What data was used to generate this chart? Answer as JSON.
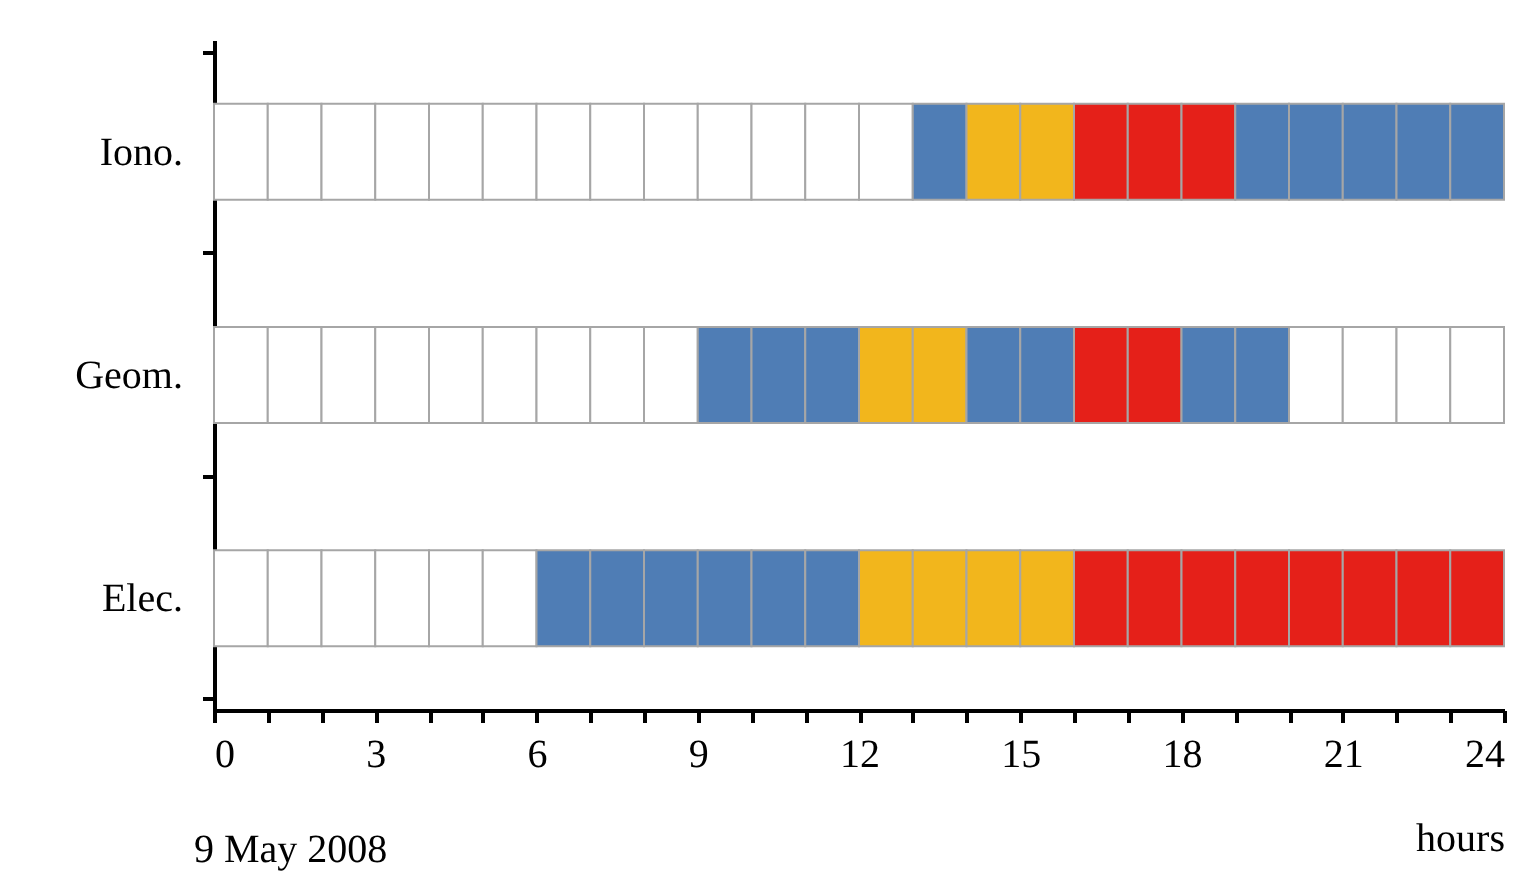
{
  "chart_data": {
    "type": "bar",
    "orientation": "horizontal",
    "stacked": true,
    "xlabel": "hours",
    "annotations": [
      "9 May 2008"
    ],
    "categories": [
      "Iono.",
      "Geom.",
      "Elec."
    ],
    "xlim": [
      0,
      24
    ],
    "xticks": [
      0,
      {
        "value": 1,
        "label": null
      },
      {
        "value": 2,
        "label": null
      },
      3,
      {
        "value": 4,
        "label": null
      },
      {
        "value": 5,
        "label": null
      },
      6,
      {
        "value": 7,
        "label": null
      },
      {
        "value": 8,
        "label": null
      },
      9,
      {
        "value": 10,
        "label": null
      },
      {
        "value": 11,
        "label": null
      },
      12,
      {
        "value": 13,
        "label": null
      },
      {
        "value": 14,
        "label": null
      },
      15,
      {
        "value": 16,
        "label": null
      },
      {
        "value": 17,
        "label": null
      },
      18,
      {
        "value": 19,
        "label": null
      },
      {
        "value": 20,
        "label": null
      },
      21,
      {
        "value": 22,
        "label": null
      },
      {
        "value": 23,
        "label": null
      },
      24
    ],
    "grid": false,
    "series": [
      {
        "values": [
          1,
          1,
          1
        ],
        "colors": [
          "#ffffff",
          "#ffffff",
          "#ffffff"
        ]
      },
      {
        "values": [
          1,
          1,
          1
        ],
        "colors": [
          "#ffffff",
          "#ffffff",
          "#ffffff"
        ]
      },
      {
        "values": [
          1,
          1,
          1
        ],
        "colors": [
          "#ffffff",
          "#ffffff",
          "#ffffff"
        ]
      },
      {
        "values": [
          1,
          1,
          1
        ],
        "colors": [
          "#ffffff",
          "#ffffff",
          "#ffffff"
        ]
      },
      {
        "values": [
          1,
          1,
          1
        ],
        "colors": [
          "#ffffff",
          "#ffffff",
          "#ffffff"
        ]
      },
      {
        "values": [
          1,
          1,
          1
        ],
        "colors": [
          "#ffffff",
          "#ffffff",
          "#ffffff"
        ]
      },
      {
        "values": [
          1,
          1,
          1
        ],
        "colors": [
          "#ffffff",
          "#ffffff",
          "#4f7db5"
        ]
      },
      {
        "values": [
          1,
          1,
          1
        ],
        "colors": [
          "#ffffff",
          "#ffffff",
          "#4f7db5"
        ]
      },
      {
        "values": [
          1,
          1,
          1
        ],
        "colors": [
          "#ffffff",
          "#ffffff",
          "#4f7db5"
        ]
      },
      {
        "values": [
          1,
          1,
          1
        ],
        "colors": [
          "#ffffff",
          "#4f7db5",
          "#4f7db5"
        ]
      },
      {
        "values": [
          1,
          1,
          1
        ],
        "colors": [
          "#ffffff",
          "#4f7db5",
          "#4f7db5"
        ]
      },
      {
        "values": [
          1,
          1,
          1
        ],
        "colors": [
          "#ffffff",
          "#4f7db5",
          "#4f7db5"
        ]
      },
      {
        "values": [
          1,
          1,
          1
        ],
        "colors": [
          "#ffffff",
          "#f2b61c",
          "#f2b61c"
        ]
      },
      {
        "values": [
          1,
          1,
          1
        ],
        "colors": [
          "#4f7db5",
          "#f2b61c",
          "#f2b61c"
        ]
      },
      {
        "values": [
          1,
          1,
          1
        ],
        "colors": [
          "#f2b61c",
          "#4f7db5",
          "#f2b61c"
        ]
      },
      {
        "values": [
          1,
          1,
          1
        ],
        "colors": [
          "#f2b61c",
          "#4f7db5",
          "#f2b61c"
        ]
      },
      {
        "values": [
          1,
          1,
          1
        ],
        "colors": [
          "#e52019",
          "#e52019",
          "#e52019"
        ]
      },
      {
        "values": [
          1,
          1,
          1
        ],
        "colors": [
          "#e52019",
          "#e52019",
          "#e52019"
        ]
      },
      {
        "values": [
          1,
          1,
          1
        ],
        "colors": [
          "#e52019",
          "#4f7db5",
          "#e52019"
        ]
      },
      {
        "values": [
          1,
          1,
          1
        ],
        "colors": [
          "#4f7db5",
          "#4f7db5",
          "#e52019"
        ]
      },
      {
        "values": [
          1,
          1,
          1
        ],
        "colors": [
          "#4f7db5",
          "#ffffff",
          "#e52019"
        ]
      },
      {
        "values": [
          1,
          1,
          1
        ],
        "colors": [
          "#4f7db5",
          "#ffffff",
          "#e52019"
        ]
      },
      {
        "values": [
          1,
          1,
          1
        ],
        "colors": [
          "#4f7db5",
          "#ffffff",
          "#e52019"
        ]
      },
      {
        "values": [
          1,
          1,
          1
        ],
        "colors": [
          "#4f7db5",
          "#ffffff",
          "#e52019"
        ]
      }
    ]
  }
}
